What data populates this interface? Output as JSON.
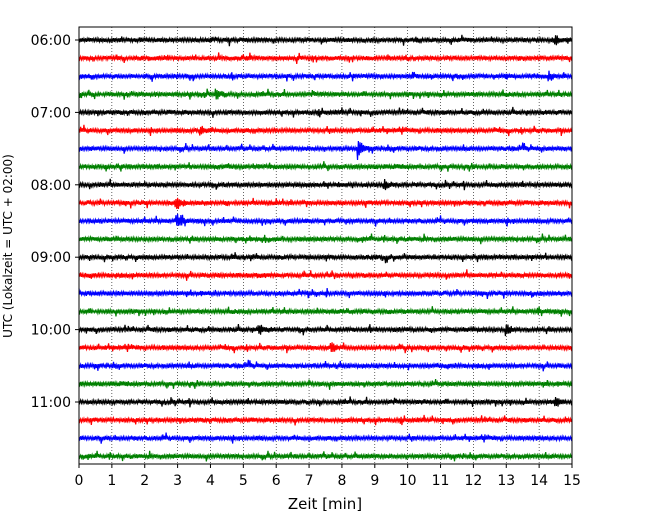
{
  "chart_data": {
    "type": "line",
    "title": "",
    "xlabel": "Zeit  [min]",
    "ylabel": "UTC (Lokalzeit = UTC + 02:00)",
    "xlim": [
      0,
      15
    ],
    "x_ticks": [
      "0",
      "1",
      "2",
      "3",
      "4",
      "5",
      "6",
      "7",
      "8",
      "9",
      "10",
      "11",
      "12",
      "13",
      "14",
      "15"
    ],
    "y_ticks": [
      "06:00",
      "07:00",
      "08:00",
      "09:00",
      "10:00",
      "11:00"
    ],
    "grid": "vertical dotted at each minute",
    "line_minutes": 15,
    "start_time": "06:00",
    "color_cycle": [
      "#000000",
      "#ff0000",
      "#0000ff",
      "#008000"
    ],
    "traces": [
      {
        "start": "06:00",
        "color": "#000000"
      },
      {
        "start": "06:15",
        "color": "#ff0000"
      },
      {
        "start": "06:30",
        "color": "#0000ff"
      },
      {
        "start": "06:45",
        "color": "#008000"
      },
      {
        "start": "07:00",
        "color": "#000000"
      },
      {
        "start": "07:15",
        "color": "#ff0000"
      },
      {
        "start": "07:30",
        "color": "#0000ff"
      },
      {
        "start": "07:45",
        "color": "#008000"
      },
      {
        "start": "08:00",
        "color": "#000000"
      },
      {
        "start": "08:15",
        "color": "#ff0000"
      },
      {
        "start": "08:30",
        "color": "#0000ff"
      },
      {
        "start": "08:45",
        "color": "#008000"
      },
      {
        "start": "09:00",
        "color": "#000000"
      },
      {
        "start": "09:15",
        "color": "#ff0000"
      },
      {
        "start": "09:30",
        "color": "#0000ff"
      },
      {
        "start": "09:45",
        "color": "#008000"
      },
      {
        "start": "10:00",
        "color": "#000000"
      },
      {
        "start": "10:15",
        "color": "#ff0000"
      },
      {
        "start": "10:30",
        "color": "#0000ff"
      },
      {
        "start": "10:45",
        "color": "#008000"
      },
      {
        "start": "11:00",
        "color": "#000000"
      },
      {
        "start": "11:15",
        "color": "#ff0000"
      },
      {
        "start": "11:30",
        "color": "#0000ff"
      },
      {
        "start": "11:45",
        "color": "#008000"
      }
    ],
    "events": [
      {
        "start": "07:30",
        "minute": 8.5,
        "amplitude": 3.2
      },
      {
        "start": "08:30",
        "minute": 3.0,
        "amplitude": 2.0
      },
      {
        "start": "08:15",
        "minute": 3.0,
        "amplitude": 1.8
      },
      {
        "start": "08:00",
        "minute": 9.3,
        "amplitude": 1.6
      },
      {
        "start": "07:15",
        "minute": 3.7,
        "amplitude": 1.5
      },
      {
        "start": "10:00",
        "minute": 13.0,
        "amplitude": 1.8
      },
      {
        "start": "10:00",
        "minute": 5.5,
        "amplitude": 1.5
      },
      {
        "start": "10:15",
        "minute": 7.7,
        "amplitude": 1.4
      },
      {
        "start": "06:00",
        "minute": 14.5,
        "amplitude": 1.6
      },
      {
        "start": "06:45",
        "minute": 4.2,
        "amplitude": 1.5
      },
      {
        "start": "11:00",
        "minute": 14.5,
        "amplitude": 1.5
      },
      {
        "start": "06:30",
        "minute": 14.3,
        "amplitude": 1.4
      }
    ]
  }
}
